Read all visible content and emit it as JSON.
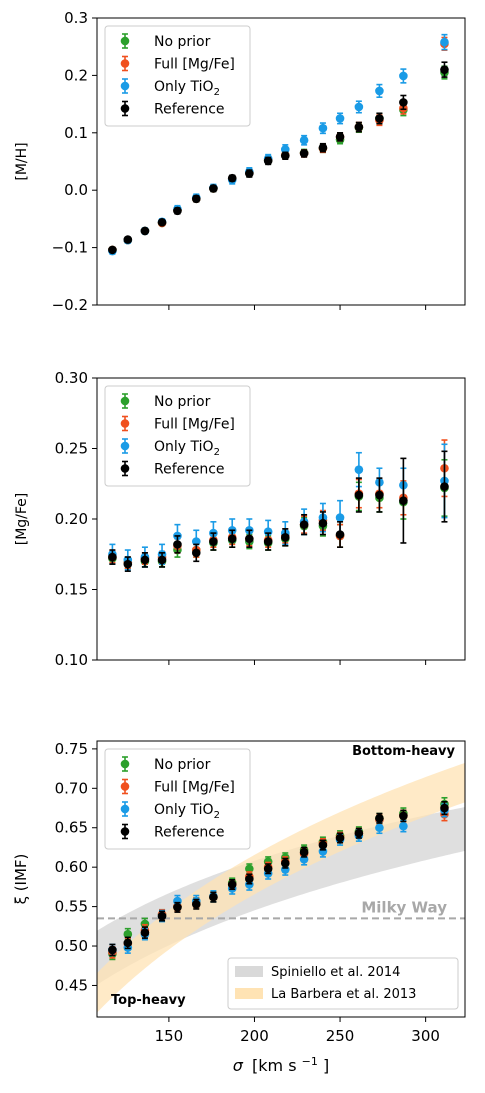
{
  "figure": {
    "xlabel_sym": "σ",
    "xlabel_unit": "[km s",
    "xlabel_exp": "−1",
    "xlabel_close": "]"
  },
  "legend": {
    "entries": [
      {
        "name": "No prior",
        "color": "#2ca02c"
      },
      {
        "name": "Full [Mg/Fe]",
        "color": "#f0501e"
      },
      {
        "name": "Only TiO",
        "sub": "2",
        "color": "#1a9be6"
      },
      {
        "name": "Reference",
        "color": "#000000"
      }
    ]
  },
  "ann": {
    "bottom_heavy": "Bottom-heavy",
    "top_heavy": "Top-heavy",
    "milky_way": "Milky Way",
    "spiniello": "Spiniello et al. 2014",
    "labarbera": "La Barbera et al. 2013"
  },
  "chart_data": [
    {
      "type": "scatter",
      "ylabel": "[M/H]",
      "xlim": [
        108,
        323
      ],
      "ylim": [
        -0.2,
        0.3
      ],
      "yticks": [
        "−0.2",
        "−0.1",
        "0.0",
        "0.1",
        "0.2",
        "0.3"
      ],
      "x": [
        117,
        126,
        136,
        146,
        155,
        166,
        176,
        187,
        197,
        208,
        218,
        229,
        240,
        250,
        261,
        273,
        287,
        311
      ],
      "series": [
        {
          "name": "No prior",
          "y": [
            -0.104,
            -0.087,
            -0.071,
            -0.057,
            -0.035,
            -0.015,
            0.003,
            0.02,
            0.03,
            0.052,
            0.061,
            0.065,
            0.073,
            0.088,
            0.109,
            0.125,
            0.14,
            0.205
          ],
          "err": [
            0.004,
            0.004,
            0.004,
            0.004,
            0.005,
            0.005,
            0.005,
            0.005,
            0.006,
            0.006,
            0.006,
            0.006,
            0.007,
            0.007,
            0.008,
            0.009,
            0.01,
            0.011
          ]
        },
        {
          "name": "Full [Mg/Fe]",
          "y": [
            -0.104,
            -0.087,
            -0.071,
            -0.057,
            -0.035,
            -0.015,
            0.003,
            0.02,
            0.03,
            0.053,
            0.061,
            0.064,
            0.073,
            0.093,
            0.11,
            0.122,
            0.143,
            0.255
          ],
          "err": [
            0.004,
            0.004,
            0.004,
            0.004,
            0.005,
            0.005,
            0.005,
            0.005,
            0.006,
            0.006,
            0.006,
            0.006,
            0.007,
            0.007,
            0.008,
            0.009,
            0.01,
            0.011
          ]
        },
        {
          "name": "Only TiO2",
          "y": [
            -0.106,
            -0.087,
            -0.071,
            -0.055,
            -0.033,
            -0.013,
            0.004,
            0.018,
            0.032,
            0.055,
            0.071,
            0.087,
            0.108,
            0.125,
            0.145,
            0.173,
            0.199,
            0.258
          ],
          "err": [
            0.005,
            0.005,
            0.005,
            0.005,
            0.006,
            0.006,
            0.006,
            0.007,
            0.007,
            0.007,
            0.008,
            0.008,
            0.009,
            0.009,
            0.01,
            0.011,
            0.012,
            0.013
          ]
        },
        {
          "name": "Reference",
          "y": [
            -0.104,
            -0.086,
            -0.071,
            -0.056,
            -0.036,
            -0.015,
            0.003,
            0.021,
            0.029,
            0.051,
            0.06,
            0.064,
            0.074,
            0.093,
            0.11,
            0.125,
            0.153,
            0.21
          ],
          "err": [
            0.004,
            0.004,
            0.004,
            0.004,
            0.005,
            0.005,
            0.005,
            0.005,
            0.006,
            0.006,
            0.006,
            0.006,
            0.007,
            0.007,
            0.008,
            0.009,
            0.012,
            0.013
          ]
        }
      ]
    },
    {
      "type": "scatter",
      "ylabel": "[Mg/Fe]",
      "xlim": [
        108,
        323
      ],
      "ylim": [
        0.1,
        0.3
      ],
      "yticks": [
        "0.10",
        "0.15",
        "0.20",
        "0.25",
        "0.30"
      ],
      "x": [
        117,
        126,
        136,
        146,
        155,
        166,
        176,
        187,
        197,
        208,
        218,
        229,
        240,
        250,
        261,
        273,
        287,
        311
      ],
      "series": [
        {
          "name": "No prior",
          "y": [
            0.172,
            0.169,
            0.17,
            0.17,
            0.178,
            0.178,
            0.183,
            0.185,
            0.184,
            0.183,
            0.186,
            0.195,
            0.195,
            0.188,
            0.216,
            0.215,
            0.212,
            0.222
          ],
          "err": [
            0.004,
            0.004,
            0.004,
            0.004,
            0.005,
            0.005,
            0.005,
            0.005,
            0.005,
            0.005,
            0.005,
            0.006,
            0.007,
            0.008,
            0.01,
            0.01,
            0.012,
            0.02
          ]
        },
        {
          "name": "Full [Mg/Fe]",
          "y": [
            0.173,
            0.169,
            0.172,
            0.173,
            0.181,
            0.178,
            0.185,
            0.187,
            0.186,
            0.185,
            0.188,
            0.196,
            0.199,
            0.188,
            0.218,
            0.218,
            0.215,
            0.236
          ],
          "err": [
            0.004,
            0.004,
            0.004,
            0.004,
            0.005,
            0.005,
            0.005,
            0.005,
            0.005,
            0.005,
            0.005,
            0.006,
            0.007,
            0.008,
            0.01,
            0.01,
            0.012,
            0.02
          ]
        },
        {
          "name": "Only TiO2",
          "y": [
            0.175,
            0.171,
            0.173,
            0.175,
            0.188,
            0.184,
            0.19,
            0.192,
            0.192,
            0.191,
            0.19,
            0.198,
            0.201,
            0.201,
            0.235,
            0.226,
            0.224,
            0.227
          ],
          "err": [
            0.007,
            0.007,
            0.007,
            0.007,
            0.008,
            0.008,
            0.008,
            0.008,
            0.008,
            0.008,
            0.008,
            0.009,
            0.01,
            0.012,
            0.012,
            0.01,
            0.012,
            0.026
          ]
        },
        {
          "name": "Reference",
          "y": [
            0.173,
            0.168,
            0.171,
            0.171,
            0.182,
            0.176,
            0.184,
            0.186,
            0.186,
            0.184,
            0.187,
            0.196,
            0.197,
            0.189,
            0.217,
            0.217,
            0.213,
            0.223
          ],
          "err": [
            0.005,
            0.005,
            0.005,
            0.005,
            0.006,
            0.006,
            0.006,
            0.006,
            0.006,
            0.006,
            0.006,
            0.007,
            0.008,
            0.009,
            0.012,
            0.012,
            0.03,
            0.025
          ]
        }
      ]
    },
    {
      "type": "scatter",
      "ylabel": "ξ (IMF)",
      "xlim": [
        108,
        323
      ],
      "ylim": [
        0.41,
        0.76
      ],
      "yticks": [
        "0.45",
        "0.50",
        "0.55",
        "0.60",
        "0.65",
        "0.70",
        "0.75"
      ],
      "xticks": [
        "150",
        "200",
        "250",
        "300"
      ],
      "milky_way_xi": 0.535,
      "x": [
        117,
        126,
        136,
        146,
        155,
        166,
        176,
        187,
        197,
        208,
        218,
        229,
        240,
        250,
        261,
        273,
        287,
        311
      ],
      "series": [
        {
          "name": "No prior",
          "y": [
            0.49,
            0.515,
            0.528,
            0.54,
            0.55,
            0.555,
            0.562,
            0.58,
            0.598,
            0.607,
            0.612,
            0.622,
            0.632,
            0.64,
            0.645,
            0.662,
            0.668,
            0.68
          ],
          "err": [
            0.007,
            0.007,
            0.007,
            0.006,
            0.006,
            0.006,
            0.006,
            0.006,
            0.006,
            0.006,
            0.006,
            0.006,
            0.006,
            0.006,
            0.006,
            0.006,
            0.007,
            0.008
          ]
        },
        {
          "name": "Full [Mg/Fe]",
          "y": [
            0.492,
            0.503,
            0.52,
            0.54,
            0.55,
            0.555,
            0.562,
            0.578,
            0.588,
            0.6,
            0.607,
            0.617,
            0.63,
            0.638,
            0.643,
            0.66,
            0.665,
            0.667
          ],
          "err": [
            0.007,
            0.007,
            0.007,
            0.006,
            0.006,
            0.006,
            0.006,
            0.006,
            0.006,
            0.006,
            0.006,
            0.006,
            0.006,
            0.006,
            0.006,
            0.006,
            0.007,
            0.008
          ]
        },
        {
          "name": "Only TiO2",
          "y": [
            0.495,
            0.498,
            0.515,
            0.538,
            0.557,
            0.557,
            0.563,
            0.573,
            0.578,
            0.592,
            0.597,
            0.61,
            0.62,
            0.635,
            0.64,
            0.65,
            0.652,
            0.672
          ],
          "err": [
            0.007,
            0.007,
            0.007,
            0.007,
            0.007,
            0.007,
            0.007,
            0.007,
            0.007,
            0.007,
            0.007,
            0.007,
            0.007,
            0.007,
            0.007,
            0.007,
            0.007,
            0.008
          ]
        },
        {
          "name": "Reference",
          "y": [
            0.495,
            0.504,
            0.517,
            0.538,
            0.549,
            0.553,
            0.562,
            0.578,
            0.585,
            0.598,
            0.605,
            0.619,
            0.628,
            0.637,
            0.643,
            0.662,
            0.665,
            0.675
          ],
          "err": [
            0.007,
            0.007,
            0.007,
            0.006,
            0.006,
            0.006,
            0.006,
            0.006,
            0.006,
            0.006,
            0.006,
            0.006,
            0.006,
            0.006,
            0.006,
            0.006,
            0.007,
            0.008
          ]
        }
      ]
    }
  ]
}
